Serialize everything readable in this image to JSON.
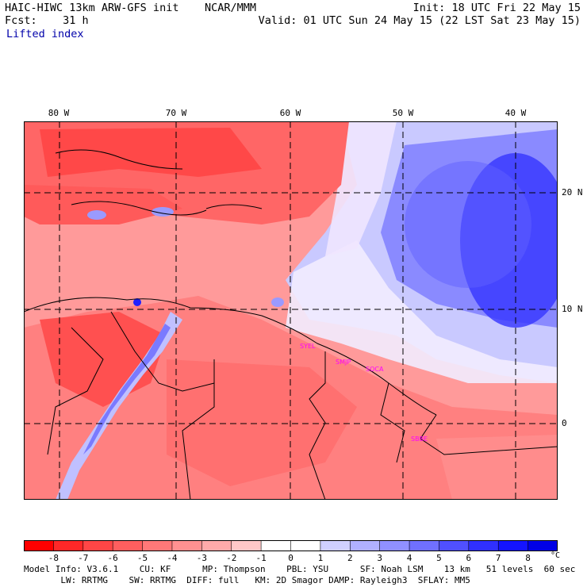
{
  "header": {
    "title": "HAIC-HIWC 13km ARW-GFS init    NCAR/MMM",
    "fcst": "Fcst:    31 h",
    "init": "Init: 18 UTC Fri 22 May 15",
    "valid": "Valid: 01 UTC Sun 24 May 15 (22 LST Sat 23 May 15)",
    "field": "Lifted index"
  },
  "map": {
    "lon_labels": [
      "80 W",
      "70 W",
      "60 W",
      "50 W",
      "40 W"
    ],
    "lat_labels": [
      "20 N",
      "10 N",
      "0"
    ],
    "stations": [
      "SYEL",
      "SMJP",
      "SOCA",
      "SBBE"
    ],
    "colors": {
      "station": "#ff00ff",
      "grid": "#000000",
      "boundary": "#000000"
    }
  },
  "colorbar": {
    "labels": [
      "-8",
      "-7",
      "-6",
      "-5",
      "-4",
      "-3",
      "-2",
      "-1",
      "0",
      "1",
      "2",
      "3",
      "4",
      "5",
      "6",
      "7",
      "8"
    ],
    "unit": "°C",
    "colors": [
      "#ff0000",
      "#ff2828",
      "#ff4646",
      "#ff5f5f",
      "#ff7878",
      "#ff9191",
      "#ffaaaa",
      "#ffc8c8",
      "#ffffff",
      "#ffffff",
      "#d0d0ff",
      "#b0b0ff",
      "#9090ff",
      "#7070ff",
      "#5050ff",
      "#3030ff",
      "#1414ff",
      "#0000e6"
    ]
  },
  "footer": {
    "line1": "Model Info: V3.6.1    CU: KF      MP: Thompson    PBL: YSU      SF: Noah LSM    13 km   51 levels  60 sec",
    "line2": "       LW: RRTMG    SW: RRTMG  DIFF: full   KM: 2D Smagor DAMP: Rayleigh3  SFLAY: MM5"
  }
}
